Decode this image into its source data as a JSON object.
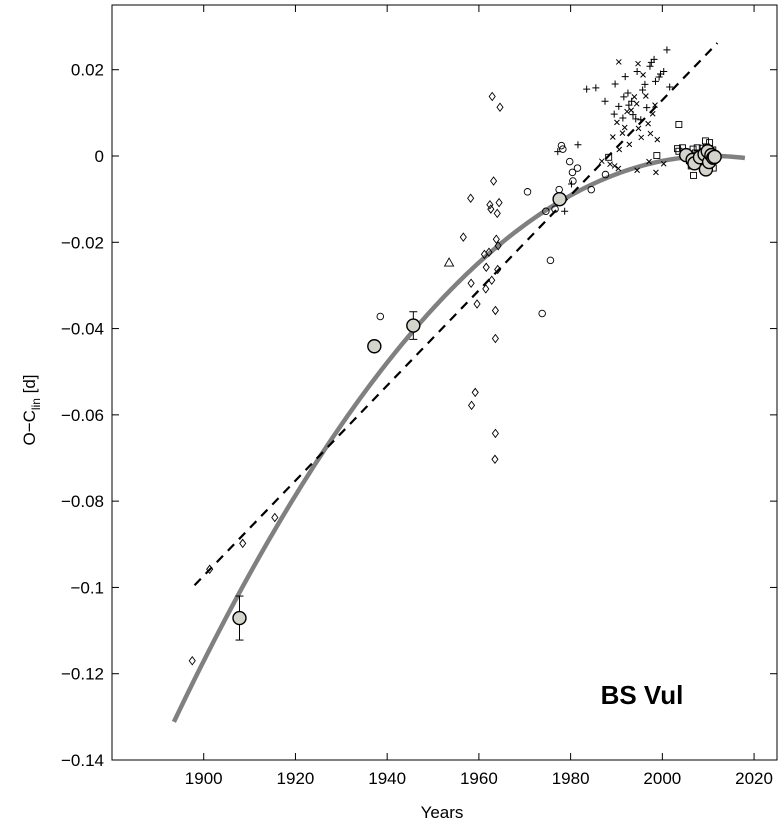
{
  "chart_data": {
    "type": "scatter",
    "title": "",
    "xlabel": "Years",
    "ylabel_main": "O−C",
    "ylabel_sub": "lin",
    "ylabel_suffix": " [d]",
    "annotation": "BS Vul",
    "xlim": [
      1880,
      2025
    ],
    "ylim": [
      -0.14,
      0.035
    ],
    "x_ticks": [
      1900,
      1920,
      1940,
      1960,
      1980,
      2000,
      2020
    ],
    "y_ticks": [
      0.02,
      0,
      -0.02,
      -0.04,
      -0.06,
      -0.08,
      -0.1,
      -0.12,
      -0.14
    ],
    "y_tick_labels": [
      "0.02",
      "0",
      "−0.02",
      "−0.04",
      "−0.06",
      "−0.08",
      "−0.1",
      "−0.12",
      "−0.14"
    ],
    "grid": false,
    "colors": {
      "quadratic_fit": "#808080",
      "marker_fill": "#d4d4cc",
      "ink": "#000000"
    },
    "linear_fit": {
      "style": "dashed",
      "x": [
        1898,
        2012
      ],
      "y": [
        -0.0995,
        0.0262
      ]
    },
    "quadratic_fit": {
      "style": "solid-thick",
      "x_range": [
        1893.5,
        2018
      ],
      "vertex_x": 2011,
      "vertex_y": 0.0,
      "coefficient": -9.5e-06
    },
    "series": [
      {
        "marker": "diamond",
        "points": [
          [
            1897.5,
            -0.117
          ],
          [
            1901.3,
            -0.0958
          ],
          [
            1908.5,
            -0.0898
          ],
          [
            1915.5,
            -0.0838
          ],
          [
            1958.2,
            -0.0098
          ],
          [
            1958.3,
            -0.0295
          ],
          [
            1958.4,
            -0.0578
          ],
          [
            1959.2,
            -0.0548
          ],
          [
            1959.6,
            -0.0343
          ],
          [
            1961.2,
            -0.0228
          ],
          [
            1961.5,
            -0.0308
          ],
          [
            1961.6,
            -0.0258
          ],
          [
            1962.2,
            -0.0223
          ],
          [
            1962.4,
            -0.0113
          ],
          [
            1962.6,
            -0.0123
          ],
          [
            1962.8,
            -0.0288
          ],
          [
            1962.9,
            0.0138
          ],
          [
            1963.2,
            -0.0058
          ],
          [
            1963.5,
            -0.0703
          ],
          [
            1963.6,
            -0.0643
          ],
          [
            1963.6,
            -0.0423
          ],
          [
            1963.6,
            -0.0358
          ],
          [
            1963.8,
            -0.0193
          ],
          [
            1964.0,
            -0.0133
          ],
          [
            1964.1,
            -0.0263
          ],
          [
            1964.2,
            -0.0208
          ],
          [
            1964.4,
            -0.0108
          ],
          [
            1964.6,
            0.0113
          ],
          [
            1956.6,
            -0.0188
          ]
        ]
      },
      {
        "marker": "triangle",
        "points": [
          [
            1953.5,
            -0.0247
          ]
        ]
      },
      {
        "marker": "circle-small",
        "points": [
          [
            1938.5,
            -0.0372
          ],
          [
            1970.6,
            -0.0083
          ],
          [
            1973.8,
            -0.0365
          ],
          [
            1974.6,
            -0.0128
          ],
          [
            1975.6,
            -0.0242
          ],
          [
            1976.6,
            -0.0123
          ],
          [
            1977.5,
            -0.0078
          ],
          [
            1978.0,
            0.0024
          ],
          [
            1978.3,
            0.0016
          ],
          [
            1979.8,
            -0.0013
          ],
          [
            1980.4,
            -0.0038
          ],
          [
            1980.5,
            -0.0058
          ],
          [
            1981.5,
            -0.0028
          ],
          [
            1984.5,
            -0.0078
          ],
          [
            1987.6,
            -0.0043
          ]
        ]
      },
      {
        "marker": "plus",
        "points": [
          [
            1983.5,
            0.0155
          ],
          [
            1985.5,
            0.0158
          ],
          [
            1987.5,
            0.0127
          ],
          [
            1989.5,
            0.0097
          ],
          [
            1989.7,
            0.0167
          ],
          [
            1990.5,
            0.0115
          ],
          [
            1991.4,
            0.0088
          ],
          [
            1991.6,
            0.0137
          ],
          [
            1991.9,
            0.0184
          ],
          [
            1992.5,
            0.0146
          ],
          [
            1992.7,
            0.0118
          ],
          [
            1993.3,
            0.0127
          ],
          [
            1993.6,
            0.0096
          ],
          [
            1994.2,
            0.0086
          ],
          [
            1994.5,
            0.0196
          ],
          [
            1995.3,
            0.0084
          ],
          [
            1995.7,
            0.0153
          ],
          [
            1996.2,
            0.0166
          ],
          [
            1996.6,
            0.0112
          ],
          [
            1997.3,
            0.0208
          ],
          [
            1997.6,
            0.0217
          ],
          [
            1998.2,
            0.0224
          ],
          [
            1998.5,
            0.0173
          ],
          [
            1999.3,
            0.0183
          ],
          [
            1999.6,
            0.019
          ],
          [
            2000.3,
            0.0196
          ],
          [
            2001.0,
            0.0246
          ],
          [
            2001.6,
            0.016
          ],
          [
            1981.6,
            0.0026
          ],
          [
            1977.2,
            0.001
          ],
          [
            1980.2,
            -0.0065
          ],
          [
            1978.7,
            -0.0128
          ]
        ]
      },
      {
        "marker": "cross",
        "points": [
          [
            1989.2,
            0.0044
          ],
          [
            1990.1,
            0.0078
          ],
          [
            1990.6,
            0.0015
          ],
          [
            1991.3,
            0.0053
          ],
          [
            1991.8,
            0.0066
          ],
          [
            1992.3,
            0.0103
          ],
          [
            1992.8,
            0.0027
          ],
          [
            1993.2,
            0.0106
          ],
          [
            1993.9,
            0.0137
          ],
          [
            1994.4,
            0.0121
          ],
          [
            1994.8,
            0.0064
          ],
          [
            1995.4,
            0.0043
          ],
          [
            1995.8,
            0.0188
          ],
          [
            1996.4,
            0.0139
          ],
          [
            1996.9,
            0.0075
          ],
          [
            1997.4,
            0.0052
          ],
          [
            1997.9,
            0.0098
          ],
          [
            1998.4,
            0.0118
          ],
          [
            1998.9,
            0.0038
          ],
          [
            1990.5,
            0.0218
          ],
          [
            1994.7,
            0.0214
          ],
          [
            1986.8,
            -0.0012
          ],
          [
            1988.6,
            -0.0019
          ],
          [
            1989.6,
            -0.0023
          ],
          [
            1990.4,
            -0.0029
          ],
          [
            1994.5,
            -0.0033
          ],
          [
            1997.1,
            -0.0013
          ],
          [
            1998.6,
            -0.0038
          ],
          [
            2000.3,
            -0.0018
          ]
        ]
      },
      {
        "marker": "square",
        "points": [
          [
            1988.3,
            -0.0003
          ],
          [
            1998.8,
            0.0001
          ],
          [
            2003.3,
            0.0017
          ],
          [
            2003.6,
            0.0011
          ],
          [
            2004.4,
            0.0019
          ],
          [
            2005.2,
            0.0009
          ],
          [
            2005.9,
            -0.0011
          ],
          [
            2006.3,
            -0.0023
          ],
          [
            2006.7,
            0.0016
          ],
          [
            2006.8,
            -0.0045
          ],
          [
            2007.2,
            0.0007
          ],
          [
            2007.6,
            0.0019
          ],
          [
            2008.3,
            -0.0005
          ],
          [
            2008.7,
            0.0018
          ],
          [
            2009.2,
            0.0002
          ],
          [
            2009.4,
            0.0035
          ],
          [
            2009.6,
            0.0021
          ],
          [
            2010.3,
            0.0031
          ],
          [
            2010.6,
            0.0011
          ],
          [
            2011.0,
            0.0014
          ],
          [
            2011.1,
            -0.0028
          ],
          [
            2003.6,
            0.0073
          ]
        ]
      },
      {
        "marker": "circle-large-filled",
        "points": [
          [
            1907.8,
            -0.1071
          ],
          [
            1937.2,
            -0.0441
          ],
          [
            1945.7,
            -0.0393
          ],
          [
            1977.6,
            -0.01
          ],
          [
            2005.2,
            0.0002
          ],
          [
            2006.6,
            -0.0009
          ],
          [
            2007.0,
            -0.0017
          ],
          [
            2008.2,
            -0.0003
          ],
          [
            2009.2,
            0.0004
          ],
          [
            2009.5,
            -0.0031
          ],
          [
            2009.9,
            0.0011
          ],
          [
            2010.2,
            -0.0014
          ],
          [
            2010.7,
            0.0002
          ],
          [
            2011.1,
            -0.0004
          ],
          [
            2011.4,
            -0.0002
          ]
        ],
        "errors": [
          0.0051,
          0.0012,
          0.0032,
          0.0012,
          0.0008,
          0.0007,
          0.0007,
          0.0005,
          0.0005,
          0.0005,
          0.0005,
          0.0005,
          0.0005,
          0.0005,
          0.0005
        ]
      }
    ]
  }
}
